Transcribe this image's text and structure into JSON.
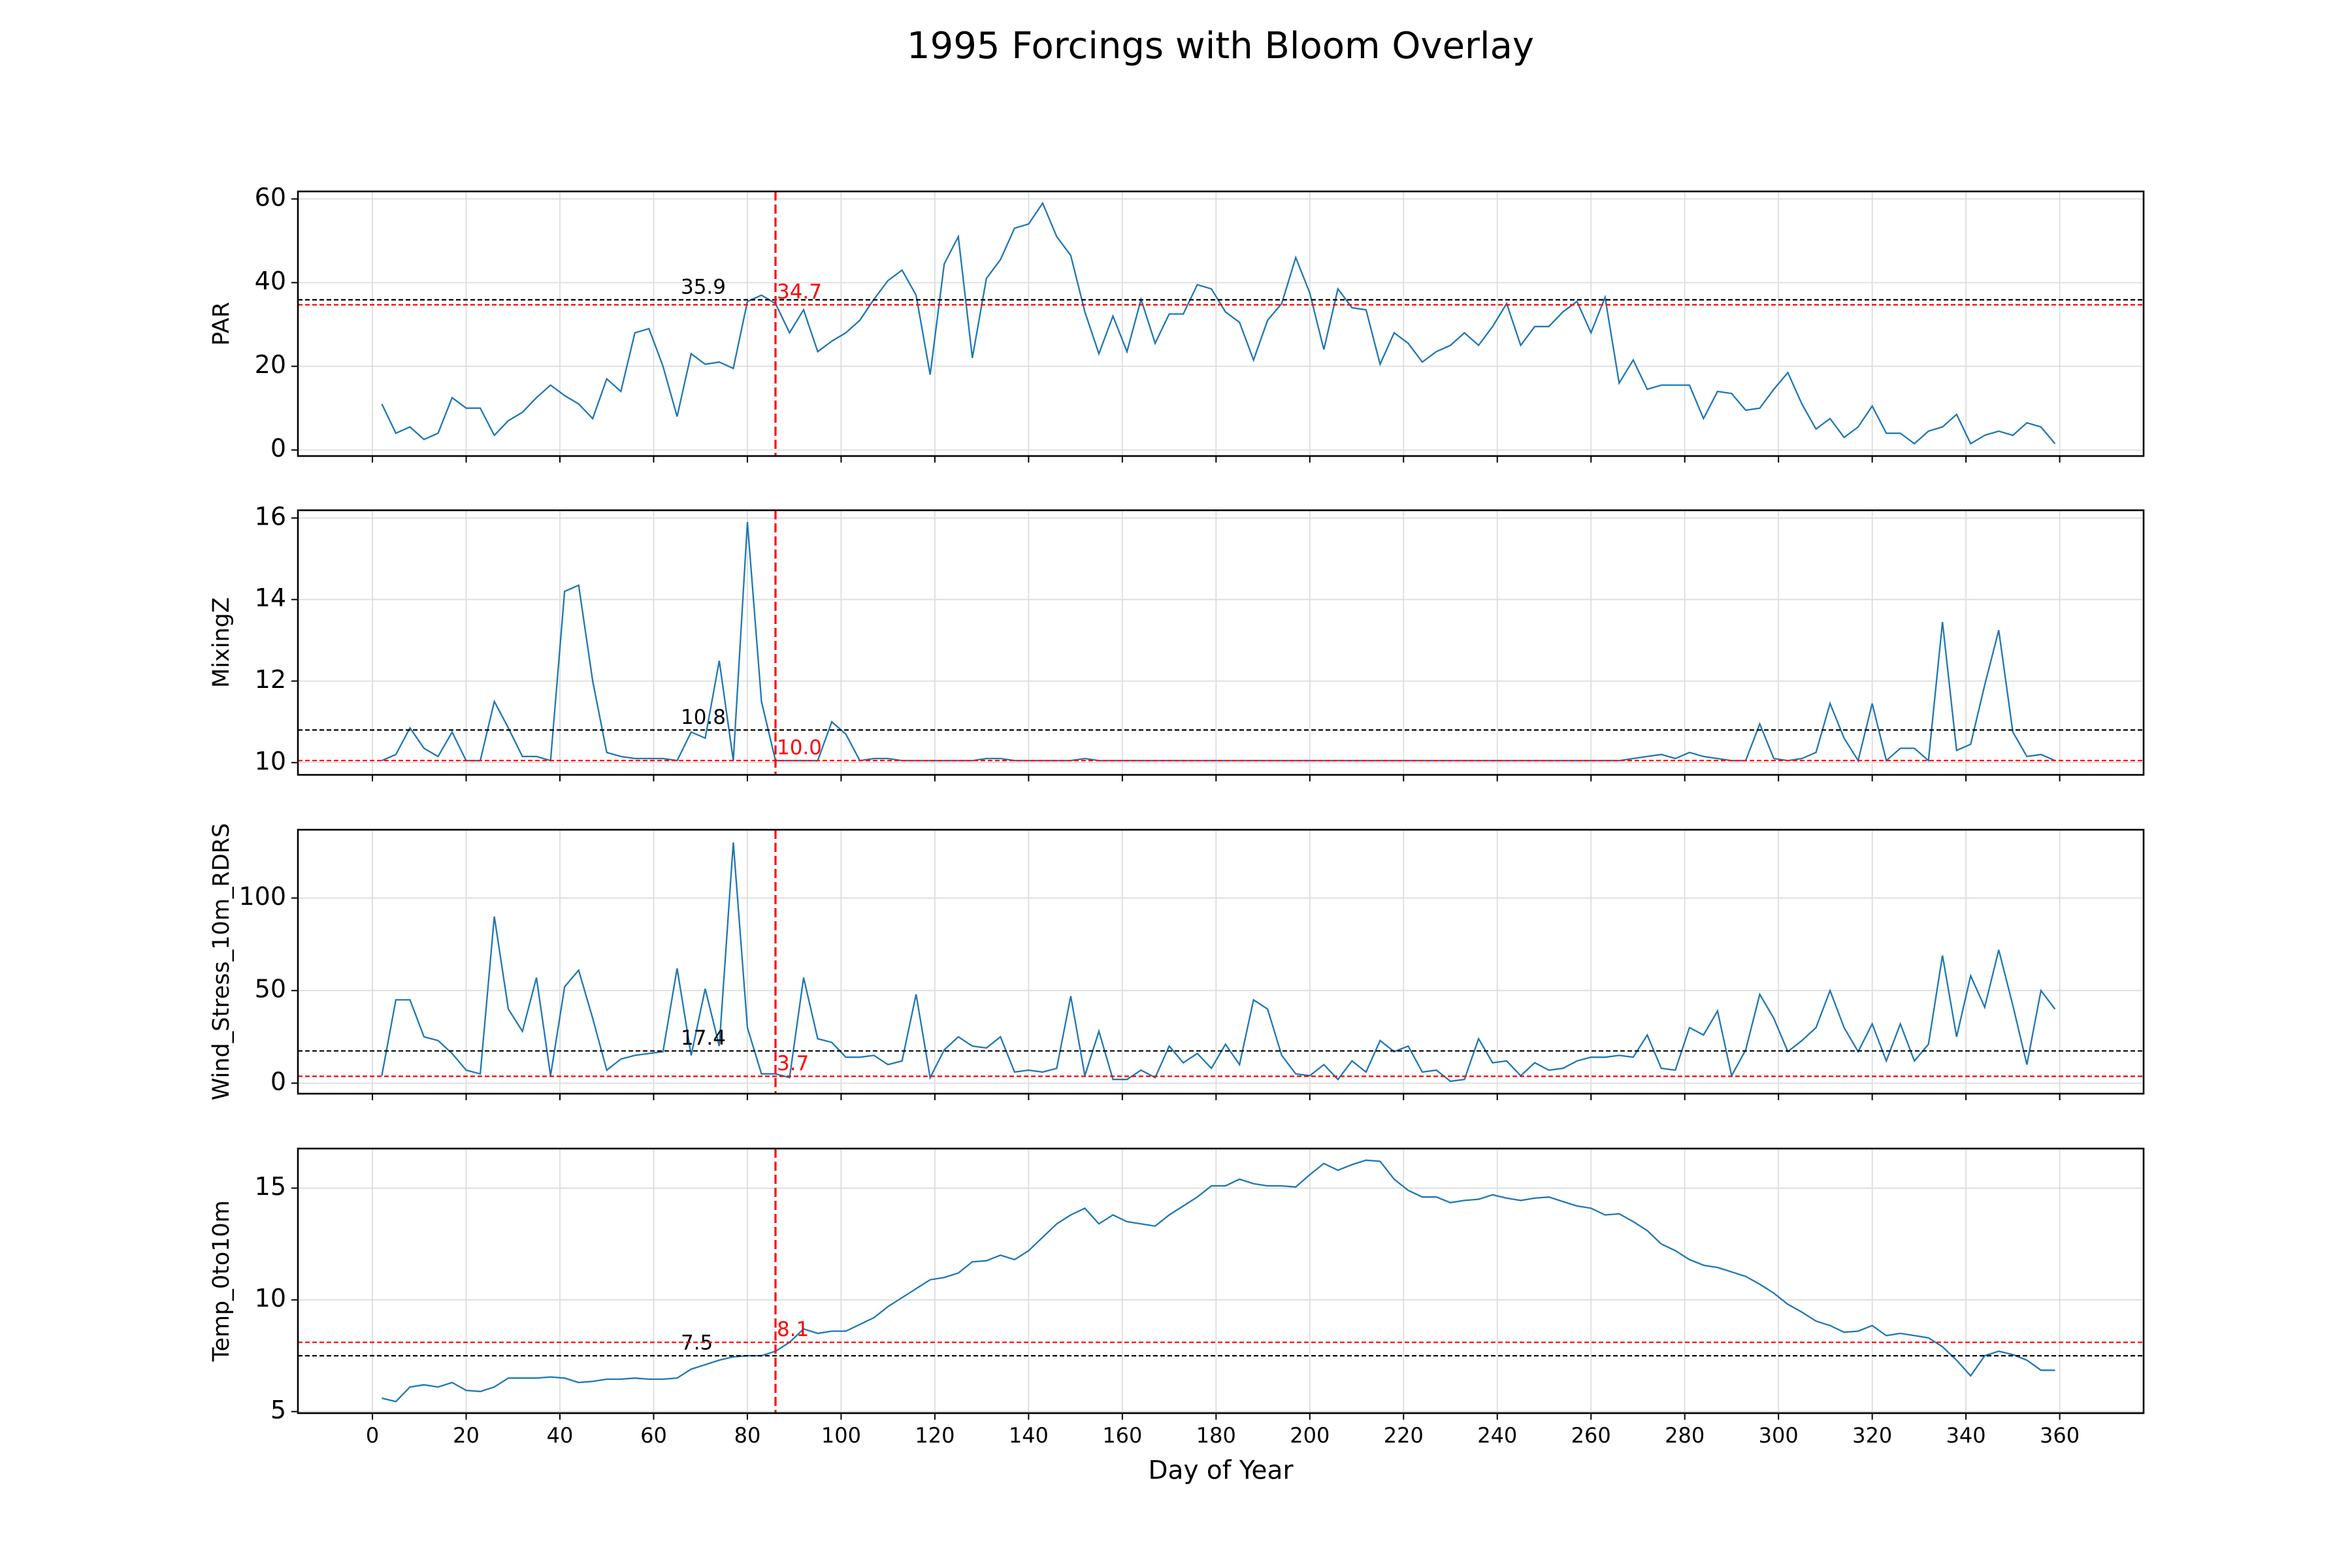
{
  "title": "1995 Forcings with Bloom Overlay",
  "chart_data": [
    {
      "type": "line",
      "ylabel": "PAR",
      "color": "#1f77b4",
      "x": [
        2,
        5,
        8,
        11,
        14,
        17,
        20,
        23,
        26,
        29,
        32,
        35,
        38,
        41,
        44,
        47,
        50,
        53,
        56,
        59,
        62,
        65,
        68,
        71,
        74,
        77,
        80,
        83,
        86,
        89,
        92,
        95,
        98,
        101,
        104,
        107,
        110,
        113,
        116,
        119,
        122,
        125,
        128,
        131,
        134,
        137,
        140,
        143,
        146,
        149,
        152,
        155,
        158,
        161,
        164,
        167,
        170,
        173,
        176,
        179,
        182,
        185,
        188,
        191,
        194,
        197,
        200,
        203,
        206,
        209,
        212,
        215,
        218,
        221,
        224,
        227,
        230,
        233,
        236,
        239,
        242,
        245,
        248,
        251,
        254,
        257,
        260,
        263,
        266,
        269,
        272,
        275,
        278,
        281,
        284,
        287,
        290,
        293,
        296,
        299,
        302,
        305,
        308,
        311,
        314,
        317,
        320,
        323,
        326,
        329,
        332,
        335,
        338,
        341,
        344,
        347,
        350,
        353,
        356,
        359
      ],
      "values": [
        11,
        4,
        5.5,
        2.5,
        4,
        12.5,
        10,
        10,
        3.5,
        7,
        9,
        12.5,
        15.5,
        13,
        11,
        7.5,
        17,
        14,
        28,
        29,
        20,
        8,
        23,
        20.5,
        21,
        19.5,
        35.5,
        37,
        35,
        28,
        33.5,
        23.5,
        26,
        28,
        31,
        36,
        40.5,
        43,
        37,
        18,
        44.5,
        51,
        22,
        41,
        45.5,
        53,
        54,
        59,
        51,
        46.5,
        33,
        23,
        32,
        23.5,
        36,
        25.5,
        32.5,
        32.5,
        39.5,
        38.5,
        33,
        30.5,
        21.5,
        31,
        35,
        46,
        37.5,
        24,
        38.5,
        34,
        33.5,
        20.5,
        28,
        25.5,
        21,
        23.5,
        25,
        28,
        25,
        29.5,
        35,
        25,
        29.5,
        29.5,
        33,
        35.5,
        28,
        36.5,
        16,
        21.5,
        14.5,
        15.5,
        15.5,
        15.5,
        7.5,
        14,
        13.5,
        9.5,
        10,
        14.5,
        18.5,
        11,
        5,
        7.5,
        3,
        5.5,
        10.5,
        4,
        4,
        1.5,
        4.5,
        5.5,
        8.5,
        1.5,
        3.5,
        4.5,
        3.5,
        6.5,
        5.5,
        1.5
      ],
      "xlim": [
        -15.9,
        377.9
      ],
      "xticks": [
        0,
        20,
        40,
        60,
        80,
        100,
        120,
        140,
        160,
        180,
        200,
        220,
        240,
        260,
        280,
        300,
        320,
        340,
        360
      ],
      "ylim": [
        -1.45,
        61.8
      ],
      "yticks": [
        0,
        20,
        40,
        60
      ],
      "grid": true,
      "hlines": [
        {
          "value": 35.9,
          "label": "35.9",
          "color": "black"
        },
        {
          "value": 34.7,
          "label": "34.7",
          "color": "red"
        }
      ],
      "vline": {
        "value": 86,
        "color": "red"
      }
    },
    {
      "type": "line",
      "ylabel": "MixingZ",
      "color": "#1f77b4",
      "x": [
        2,
        5,
        8,
        11,
        14,
        17,
        20,
        23,
        26,
        29,
        32,
        35,
        38,
        41,
        44,
        47,
        50,
        53,
        56,
        59,
        62,
        65,
        68,
        71,
        74,
        77,
        80,
        83,
        86,
        89,
        92,
        95,
        98,
        101,
        104,
        107,
        110,
        113,
        116,
        119,
        122,
        125,
        128,
        131,
        134,
        137,
        140,
        143,
        146,
        149,
        152,
        155,
        158,
        161,
        164,
        167,
        170,
        173,
        176,
        179,
        182,
        185,
        188,
        191,
        194,
        197,
        200,
        203,
        206,
        209,
        212,
        215,
        218,
        221,
        224,
        227,
        230,
        233,
        236,
        239,
        242,
        245,
        248,
        251,
        254,
        257,
        260,
        263,
        266,
        269,
        272,
        275,
        278,
        281,
        284,
        287,
        290,
        293,
        296,
        299,
        302,
        305,
        308,
        311,
        314,
        317,
        320,
        323,
        326,
        329,
        332,
        335,
        338,
        341,
        344,
        347,
        350,
        353,
        356,
        359
      ],
      "values": [
        10.05,
        10.2,
        10.85,
        10.35,
        10.15,
        10.75,
        10.05,
        10.05,
        11.5,
        10.85,
        10.15,
        10.15,
        10.05,
        14.2,
        14.35,
        12,
        10.25,
        10.15,
        10.1,
        10.1,
        10.1,
        10.05,
        10.75,
        10.6,
        12.5,
        10.05,
        15.9,
        11.5,
        10.05,
        10.05,
        10.05,
        10.05,
        11,
        10.7,
        10.05,
        10.1,
        10.1,
        10.05,
        10.05,
        10.05,
        10.05,
        10.05,
        10.05,
        10.1,
        10.1,
        10.05,
        10.05,
        10.05,
        10.05,
        10.05,
        10.1,
        10.05,
        10.05,
        10.05,
        10.05,
        10.05,
        10.05,
        10.05,
        10.05,
        10.05,
        10.05,
        10.05,
        10.05,
        10.05,
        10.05,
        10.05,
        10.05,
        10.05,
        10.05,
        10.05,
        10.05,
        10.05,
        10.05,
        10.05,
        10.05,
        10.05,
        10.05,
        10.05,
        10.05,
        10.05,
        10.05,
        10.05,
        10.05,
        10.05,
        10.05,
        10.05,
        10.05,
        10.05,
        10.05,
        10.1,
        10.15,
        10.2,
        10.1,
        10.25,
        10.15,
        10.1,
        10.05,
        10.05,
        10.95,
        10.1,
        10.05,
        10.1,
        10.25,
        11.45,
        10.6,
        10.05,
        11.45,
        10.05,
        10.35,
        10.35,
        10.05,
        13.45,
        10.3,
        10.45,
        11.9,
        13.25,
        10.75,
        10.15,
        10.2,
        10.05
      ],
      "xlim": [
        -15.9,
        377.9
      ],
      "xticks": [
        0,
        20,
        40,
        60,
        80,
        100,
        120,
        140,
        160,
        180,
        200,
        220,
        240,
        260,
        280,
        300,
        320,
        340,
        360
      ],
      "ylim": [
        9.7,
        16.19
      ],
      "yticks": [
        10,
        12,
        14,
        16
      ],
      "grid": true,
      "hlines": [
        {
          "value": 10.8,
          "label": "10.8",
          "color": "black"
        },
        {
          "value": 10.05,
          "label": "10.0",
          "color": "red"
        }
      ],
      "vline": {
        "value": 86,
        "color": "red"
      }
    },
    {
      "type": "line",
      "ylabel": "Wind_Stress_10m_RDRS",
      "color": "#1f77b4",
      "x": [
        2,
        5,
        8,
        11,
        14,
        17,
        20,
        23,
        26,
        29,
        32,
        35,
        38,
        41,
        44,
        47,
        50,
        53,
        56,
        59,
        62,
        65,
        68,
        71,
        74,
        77,
        80,
        83,
        86,
        89,
        92,
        95,
        98,
        101,
        104,
        107,
        110,
        113,
        116,
        119,
        122,
        125,
        128,
        131,
        134,
        137,
        140,
        143,
        146,
        149,
        152,
        155,
        158,
        161,
        164,
        167,
        170,
        173,
        176,
        179,
        182,
        185,
        188,
        191,
        194,
        197,
        200,
        203,
        206,
        209,
        212,
        215,
        218,
        221,
        224,
        227,
        230,
        233,
        236,
        239,
        242,
        245,
        248,
        251,
        254,
        257,
        260,
        263,
        266,
        269,
        272,
        275,
        278,
        281,
        284,
        287,
        290,
        293,
        296,
        299,
        302,
        305,
        308,
        311,
        314,
        317,
        320,
        323,
        326,
        329,
        332,
        335,
        338,
        341,
        344,
        347,
        350,
        353,
        356,
        359
      ],
      "values": [
        4,
        45,
        45,
        25,
        23,
        16,
        7,
        5,
        90,
        40,
        28,
        57,
        4,
        52,
        61,
        35,
        7,
        13,
        15,
        16,
        17,
        62,
        15,
        51,
        20,
        130,
        30,
        5,
        5,
        3,
        57,
        24,
        22,
        14,
        14,
        15,
        10,
        12,
        48,
        3,
        18,
        25,
        20,
        19,
        25,
        6,
        7,
        6,
        8,
        47,
        4,
        28,
        2,
        2,
        7,
        3,
        20,
        11,
        16,
        8,
        21,
        10,
        45,
        40,
        15,
        5,
        4,
        10,
        2,
        12,
        6,
        23,
        17,
        20,
        6,
        7,
        1,
        2,
        24,
        11,
        12,
        4,
        11,
        7,
        8,
        12,
        14,
        14,
        15,
        14,
        26,
        8,
        7,
        30,
        26,
        39,
        4,
        18,
        48,
        35,
        17,
        23,
        30,
        50,
        30,
        17,
        32,
        12,
        32,
        12,
        21,
        69,
        25,
        58,
        41,
        72,
        42,
        10,
        50,
        40
      ],
      "xlim": [
        -15.9,
        377.9
      ],
      "xticks": [
        0,
        20,
        40,
        60,
        80,
        100,
        120,
        140,
        160,
        180,
        200,
        220,
        240,
        260,
        280,
        300,
        320,
        340,
        360
      ],
      "ylim": [
        -5.7,
        136.9
      ],
      "yticks": [
        0,
        50,
        100
      ],
      "grid": true,
      "hlines": [
        {
          "value": 17.4,
          "label": "17.4",
          "color": "black"
        },
        {
          "value": 3.7,
          "label": "3.7",
          "color": "red"
        }
      ],
      "vline": {
        "value": 86,
        "color": "red"
      }
    },
    {
      "type": "line",
      "ylabel": "Temp_0to10m",
      "xlabel": "Day of Year",
      "color": "#1f77b4",
      "x": [
        2,
        5,
        8,
        11,
        14,
        17,
        20,
        23,
        26,
        29,
        32,
        35,
        38,
        41,
        44,
        47,
        50,
        53,
        56,
        59,
        62,
        65,
        68,
        71,
        74,
        77,
        80,
        83,
        86,
        89,
        92,
        95,
        98,
        101,
        104,
        107,
        110,
        113,
        116,
        119,
        122,
        125,
        128,
        131,
        134,
        137,
        140,
        143,
        146,
        149,
        152,
        155,
        158,
        161,
        164,
        167,
        170,
        173,
        176,
        179,
        182,
        185,
        188,
        191,
        194,
        197,
        200,
        203,
        206,
        209,
        212,
        215,
        218,
        221,
        224,
        227,
        230,
        233,
        236,
        239,
        242,
        245,
        248,
        251,
        254,
        257,
        260,
        263,
        266,
        269,
        272,
        275,
        278,
        281,
        284,
        287,
        290,
        293,
        296,
        299,
        302,
        305,
        308,
        311,
        314,
        317,
        320,
        323,
        326,
        329,
        332,
        335,
        338,
        341,
        344,
        347,
        350,
        353,
        356,
        359
      ],
      "values": [
        5.6,
        5.45,
        6.1,
        6.2,
        6.1,
        6.3,
        5.95,
        5.9,
        6.1,
        6.5,
        6.5,
        6.5,
        6.55,
        6.5,
        6.3,
        6.35,
        6.45,
        6.45,
        6.5,
        6.45,
        6.45,
        6.5,
        6.9,
        7.1,
        7.3,
        7.45,
        7.5,
        7.5,
        7.7,
        8.1,
        8.7,
        8.5,
        8.6,
        8.6,
        8.9,
        9.2,
        9.7,
        10.1,
        10.5,
        10.9,
        11,
        11.2,
        11.7,
        11.75,
        12,
        11.8,
        12.2,
        12.8,
        13.4,
        13.8,
        14.1,
        13.4,
        13.8,
        13.5,
        13.4,
        13.3,
        13.8,
        14.2,
        14.6,
        15.1,
        15.1,
        15.4,
        15.2,
        15.1,
        15.1,
        15.05,
        15.6,
        16.1,
        15.8,
        16.05,
        16.25,
        16.2,
        15.4,
        14.9,
        14.6,
        14.6,
        14.35,
        14.45,
        14.5,
        14.7,
        14.55,
        14.45,
        14.55,
        14.6,
        14.4,
        14.2,
        14.1,
        13.8,
        13.85,
        13.5,
        13.1,
        12.5,
        12.2,
        11.8,
        11.55,
        11.45,
        11.25,
        11.05,
        10.7,
        10.3,
        9.8,
        9.45,
        9.05,
        8.85,
        8.55,
        8.6,
        8.85,
        8.4,
        8.5,
        8.4,
        8.3,
        7.9,
        7.3,
        6.6,
        7.5,
        7.7,
        7.55,
        7.3,
        6.85,
        6.85
      ],
      "xlim": [
        -15.9,
        377.9
      ],
      "xticks": [
        0,
        20,
        40,
        60,
        80,
        100,
        120,
        140,
        160,
        180,
        200,
        220,
        240,
        260,
        280,
        300,
        320,
        340,
        360
      ],
      "ylim": [
        4.93,
        16.77
      ],
      "yticks": [
        5,
        10,
        15
      ],
      "grid": true,
      "hlines": [
        {
          "value": 7.5,
          "label": "7.5",
          "color": "black"
        },
        {
          "value": 8.1,
          "label": "8.1",
          "color": "red"
        }
      ],
      "vline": {
        "value": 86,
        "color": "red"
      }
    }
  ]
}
